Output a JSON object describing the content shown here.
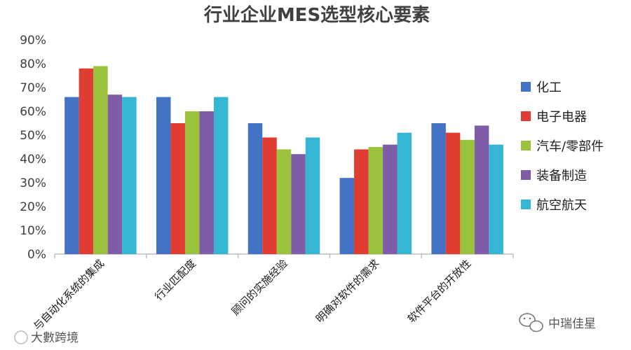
{
  "chart_data": {
    "type": "bar",
    "title": "行业企业MES选型核心要素",
    "categories": [
      "与自动化系统的集成",
      "行业匹配度",
      "顾问的实施经验",
      "明确对软件的需求",
      "软件平台的开放性"
    ],
    "series": [
      {
        "name": "化工",
        "color": "#4472C4",
        "values": [
          66,
          66,
          55,
          32,
          55
        ]
      },
      {
        "name": "电子电器",
        "color": "#E03C31",
        "values": [
          78,
          55,
          49,
          44,
          51
        ]
      },
      {
        "name": "汽车/零部件",
        "color": "#9BC23C",
        "values": [
          79,
          60,
          44,
          45,
          48
        ]
      },
      {
        "name": "装备制造",
        "color": "#7F5CA8",
        "values": [
          67,
          60,
          42,
          46,
          54
        ]
      },
      {
        "name": "航空航天",
        "color": "#35B6D3",
        "values": [
          66,
          66,
          49,
          51,
          46
        ]
      }
    ],
    "yticks": [
      "0%",
      "10%",
      "20%",
      "30%",
      "40%",
      "50%",
      "60%",
      "70%",
      "80%",
      "90%"
    ],
    "ylim": [
      0,
      90
    ],
    "grid": false,
    "legend": "right"
  },
  "watermark": {
    "left_text": "大數跨境",
    "right_text": "中瑞佳星",
    "right_icon": "wechat-icon"
  }
}
